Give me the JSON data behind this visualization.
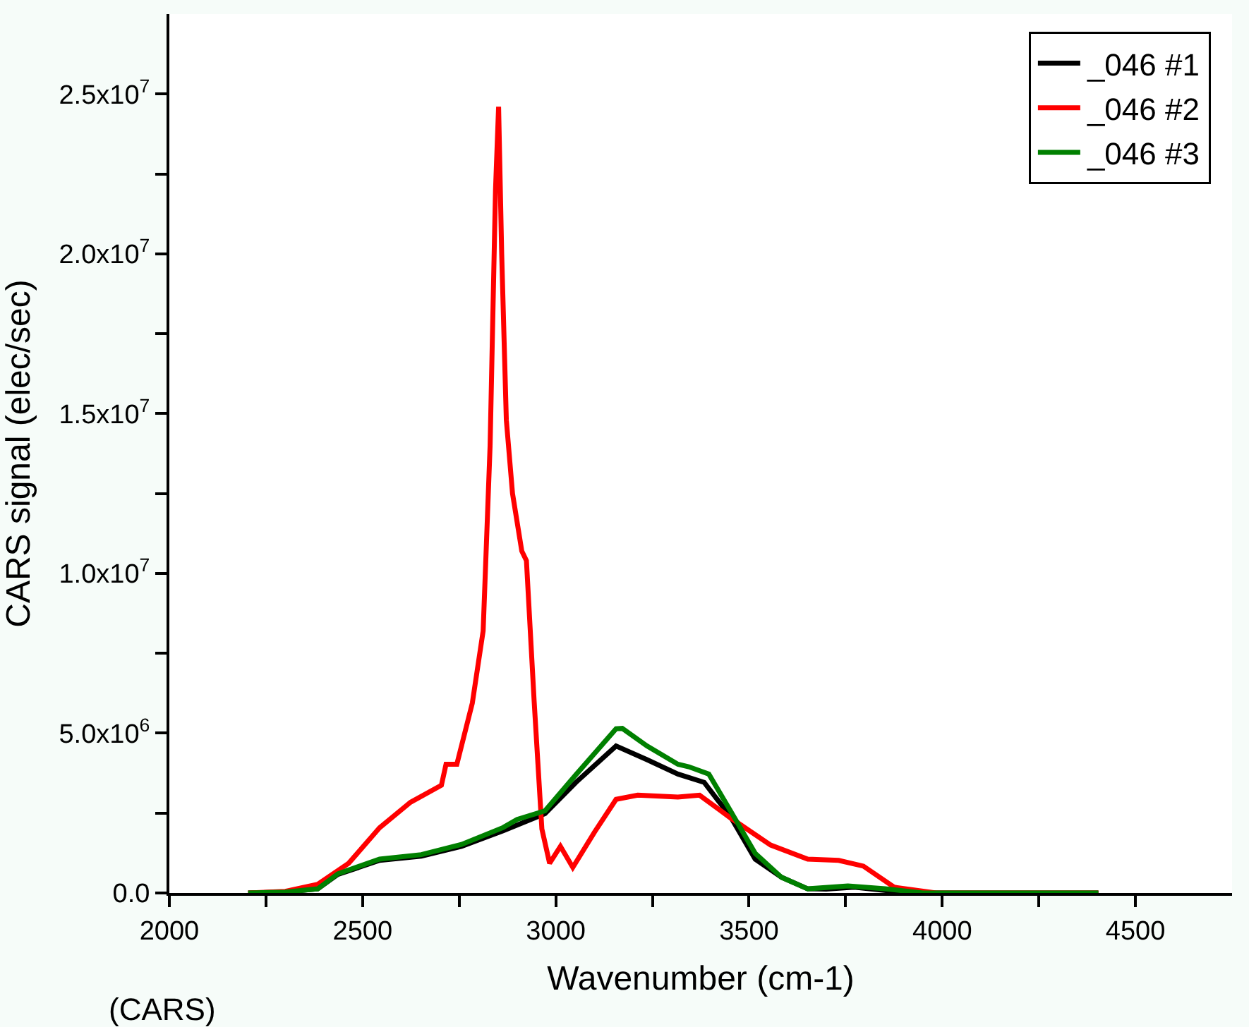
{
  "chart_data": {
    "type": "line",
    "xlabel": "Wavenumber (cm-1)",
    "ylabel": "CARS signal (elec/sec)",
    "annotations": [
      "(CARS)"
    ],
    "xlim": [
      2000,
      4750
    ],
    "ylim": [
      0,
      27500000
    ],
    "xticks": [
      2000,
      {
        "value": 2250,
        "label": null
      },
      2500,
      {
        "value": 2750,
        "label": null
      },
      3000,
      {
        "value": 3250,
        "label": null
      },
      3500,
      {
        "value": 3750,
        "label": null
      },
      4000,
      {
        "value": 4250,
        "label": null
      },
      4500
    ],
    "yticks": [
      {
        "value": 0,
        "label": "0.0"
      },
      {
        "value": 2500000,
        "label": null
      },
      {
        "value": 5000000,
        "label": "5.0x10$^{6}$"
      },
      {
        "value": 7500000,
        "label": null
      },
      {
        "value": 10000000,
        "label": "1.0x10$^{7}$"
      },
      {
        "value": 12500000,
        "label": null
      },
      {
        "value": 15000000,
        "label": "1.5x10$^{7}$"
      },
      {
        "value": 17500000,
        "label": null
      },
      {
        "value": 20000000,
        "label": "2.0x10$^{7}$"
      },
      {
        "value": 22500000,
        "label": null
      },
      {
        "value": 25000000,
        "label": "2.5x10$^{7}$"
      }
    ],
    "legend": "top right",
    "marker": "none",
    "line_style": "solid",
    "series": [
      {
        "name": "_046 #1",
        "color": "#000000",
        "x": [
          2204,
          2300,
          2384,
          2436,
          2544,
          2652,
          2756,
          2864,
          2972,
          3052,
          3156,
          3236,
          3316,
          3384,
          3452,
          3516,
          3584,
          3652,
          3700,
          3772,
          3876,
          3950,
          4404
        ],
        "values": [
          0,
          30000,
          130000,
          580000,
          1020000,
          1150000,
          1460000,
          1950000,
          2480000,
          3460000,
          4600000,
          4170000,
          3720000,
          3460000,
          2390000,
          1060000,
          490000,
          130000,
          120000,
          180000,
          50000,
          0,
          0
        ]
      },
      {
        "name": "_046 #2",
        "color": "#ff0000",
        "x": [
          2204,
          2300,
          2384,
          2464,
          2544,
          2624,
          2704,
          2716,
          2744,
          2784,
          2812,
          2830,
          2844,
          2852,
          2860,
          2872,
          2888,
          2912,
          2924,
          2944,
          2964,
          2984,
          3012,
          3044,
          3100,
          3156,
          3212,
          3316,
          3372,
          3452,
          3556,
          3652,
          3732,
          3796,
          3876,
          3984,
          4404
        ],
        "values": [
          0,
          50000,
          270000,
          930000,
          2040000,
          2840000,
          3370000,
          4030000,
          4030000,
          5940000,
          8200000,
          14000000,
          22000000,
          24600000,
          20000000,
          14800000,
          12500000,
          10700000,
          10400000,
          6000000,
          2000000,
          930000,
          1460000,
          800000,
          1900000,
          2930000,
          3060000,
          3000000,
          3060000,
          2350000,
          1500000,
          1060000,
          1020000,
          840000,
          180000,
          0,
          0
        ]
      },
      {
        "name": "_046 #3",
        "color": "#008000",
        "x": [
          2204,
          2300,
          2384,
          2436,
          2544,
          2652,
          2756,
          2864,
          2900,
          2972,
          3052,
          3156,
          3172,
          3236,
          3316,
          3344,
          3396,
          3452,
          3516,
          3584,
          3652,
          3756,
          3852,
          3950,
          4404
        ],
        "values": [
          0,
          30000,
          130000,
          600000,
          1060000,
          1200000,
          1520000,
          2050000,
          2300000,
          2570000,
          3700000,
          5140000,
          5150000,
          4600000,
          4030000,
          3950000,
          3720000,
          2570000,
          1240000,
          490000,
          130000,
          220000,
          130000,
          0,
          0
        ]
      }
    ]
  }
}
